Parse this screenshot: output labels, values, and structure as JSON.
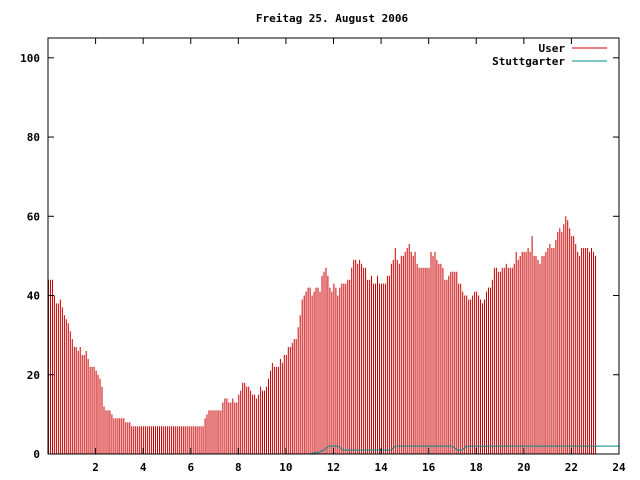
{
  "chart_data": {
    "type": "bar",
    "title": "Freitag 25. August 2006",
    "xlim": [
      0,
      24
    ],
    "ylim": [
      0,
      105
    ],
    "x_ticks": [
      2,
      4,
      6,
      8,
      10,
      12,
      14,
      16,
      18,
      20,
      22,
      24
    ],
    "y_ticks": [
      0,
      20,
      40,
      60,
      80,
      100
    ],
    "grid": false,
    "legend_position": "top-right",
    "series": [
      {
        "name": "User",
        "color": "#cc0000",
        "style": "impulses",
        "interval_hours": 0.0833,
        "values": [
          44,
          44,
          44,
          40,
          38,
          38,
          39,
          37,
          35,
          34,
          33,
          31,
          29,
          27,
          27,
          26,
          27,
          25,
          25,
          26,
          24,
          22,
          22,
          22,
          21,
          20,
          19,
          17,
          12,
          11,
          11,
          11,
          10,
          9,
          9,
          9,
          9,
          9,
          9,
          8,
          8,
          8,
          7,
          7,
          7,
          7,
          7,
          7,
          7,
          7,
          7,
          7,
          7,
          7,
          7,
          7,
          7,
          7,
          7,
          7,
          7,
          7,
          7,
          7,
          7,
          7,
          7,
          7,
          7,
          7,
          7,
          7,
          7,
          7,
          7,
          7,
          7,
          7,
          7,
          9,
          10,
          11,
          11,
          11,
          11,
          11,
          11,
          11,
          13,
          14,
          14,
          13,
          13,
          14,
          13,
          13,
          15,
          16,
          18,
          18,
          17,
          17,
          16,
          15,
          15,
          14,
          15,
          17,
          16,
          16,
          17,
          19,
          21,
          23,
          22,
          22,
          22,
          24,
          23,
          25,
          25,
          27,
          27,
          28,
          29,
          29,
          32,
          35,
          39,
          40,
          41,
          42,
          42,
          40,
          41,
          42,
          42,
          41,
          45,
          46,
          47,
          45,
          42,
          41,
          43,
          42,
          40,
          42,
          43,
          43,
          43,
          44,
          44,
          47,
          49,
          49,
          48,
          49,
          48,
          47,
          47,
          44,
          44,
          45,
          43,
          43,
          45,
          43,
          43,
          43,
          43,
          45,
          45,
          48,
          49,
          52,
          49,
          48,
          50,
          50,
          51,
          52,
          53,
          51,
          50,
          51,
          48,
          47,
          47,
          47,
          47,
          47,
          47,
          51,
          50,
          51,
          49,
          48,
          48,
          47,
          44,
          44,
          45,
          46,
          46,
          46,
          46,
          43,
          43,
          41,
          40,
          40,
          39,
          39,
          40,
          41,
          41,
          40,
          39,
          38,
          39,
          41,
          42,
          42,
          44,
          47,
          47,
          46,
          46,
          47,
          47,
          48,
          47,
          47,
          47,
          48,
          51,
          49,
          50,
          51,
          51,
          51,
          52,
          51,
          55,
          50,
          50,
          49,
          48,
          50,
          50,
          51,
          52,
          53,
          52,
          52,
          54,
          56,
          57,
          56,
          58,
          60,
          59,
          57,
          55,
          55,
          53,
          51,
          50,
          52,
          52,
          52,
          52,
          51,
          52,
          51,
          50
        ]
      },
      {
        "name": "Stuttgarter",
        "color": "#008b8b",
        "style": "lines",
        "points": [
          [
            0,
            0
          ],
          [
            11.0,
            0
          ],
          [
            11.4,
            0.5
          ],
          [
            11.6,
            1
          ],
          [
            11.8,
            2
          ],
          [
            12.2,
            2
          ],
          [
            12.4,
            1
          ],
          [
            14.4,
            1
          ],
          [
            14.6,
            2
          ],
          [
            17.0,
            2
          ],
          [
            17.2,
            1
          ],
          [
            17.4,
            1
          ],
          [
            17.6,
            2
          ],
          [
            24,
            2
          ]
        ]
      }
    ]
  }
}
